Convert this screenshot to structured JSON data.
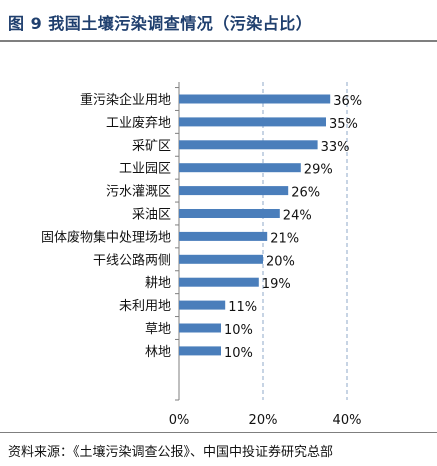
{
  "title": "图 9    我国土壤污染调查情况（污染占比）",
  "source": "资料来源：《土壤污染调查公报》、中国中投证券研究总部",
  "colors": {
    "bar": "#4a7ebb",
    "title": "#1f3f6e",
    "gridline": "#8fa9c9"
  },
  "chart_data": {
    "type": "bar",
    "orientation": "horizontal",
    "categories": [
      "重污染企业用地",
      "工业废弃地",
      "采矿区",
      "工业园区",
      "污水灌溉区",
      "采油区",
      "固体废物集中处理场地",
      "干线公路两侧",
      "耕地",
      "未利用地",
      "草地",
      "林地"
    ],
    "values": [
      36,
      35,
      33,
      29,
      26,
      24,
      21,
      20,
      19,
      11,
      10,
      10
    ],
    "value_labels": [
      "36%",
      "35%",
      "33%",
      "29%",
      "26%",
      "24%",
      "21%",
      "20%",
      "19%",
      "11%",
      "10%",
      "10%"
    ],
    "xlim": [
      0,
      40
    ],
    "xticks": [
      0,
      20,
      40
    ],
    "xtick_labels": [
      "0%",
      "20%",
      "40%"
    ],
    "grid": "dashed vertical at 20% and 40%",
    "legend": "none"
  }
}
